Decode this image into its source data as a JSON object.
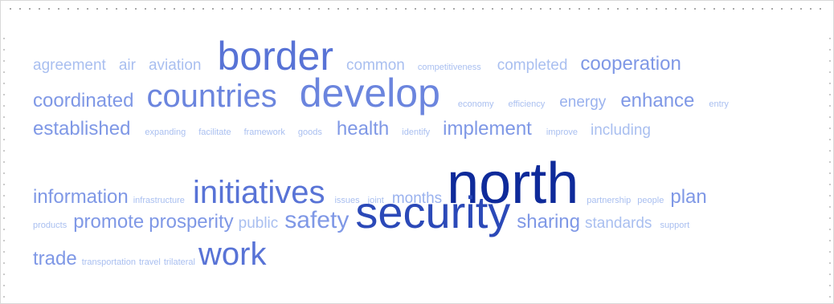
{
  "cloud": {
    "rows": [
      [
        {
          "text": "agreement",
          "size": 2,
          "color": "#a9bff0"
        },
        {
          "text": "air",
          "size": 2,
          "color": "#a9bff0"
        },
        {
          "text": "aviation",
          "size": 2,
          "color": "#a9bff0"
        },
        {
          "text": "border",
          "size": 6,
          "color": "#5873d6"
        },
        {
          "text": "common",
          "size": 2,
          "color": "#a9bff0"
        },
        {
          "text": "competitiveness",
          "size": 1,
          "color": "#a9bff0"
        },
        {
          "text": "completed",
          "size": 2,
          "color": "#a9bff0"
        },
        {
          "text": "cooperation",
          "size": 3,
          "color": "#7f98e6"
        }
      ],
      [
        {
          "text": "coordinated",
          "size": 3,
          "color": "#7f98e6"
        },
        {
          "text": "countries",
          "size": 5,
          "color": "#6b85de"
        },
        {
          "text": "develop",
          "size": 6,
          "color": "#6b85de"
        },
        {
          "text": "economy",
          "size": 1,
          "color": "#a9bff0"
        },
        {
          "text": "efficiency",
          "size": 1,
          "color": "#a9bff0"
        },
        {
          "text": "energy",
          "size": 2,
          "color": "#9ab2ee"
        },
        {
          "text": "enhance",
          "size": 3,
          "color": "#7f98e6"
        },
        {
          "text": "entry",
          "size": 1,
          "color": "#a9bff0"
        }
      ],
      [
        {
          "text": "established",
          "size": 3,
          "color": "#7f98e6"
        },
        {
          "text": "expanding",
          "size": 1,
          "color": "#a9bff0"
        },
        {
          "text": "facilitate",
          "size": 1,
          "color": "#a9bff0"
        },
        {
          "text": "framework",
          "size": 1,
          "color": "#a9bff0"
        },
        {
          "text": "goods",
          "size": 1,
          "color": "#a9bff0"
        },
        {
          "text": "health",
          "size": 3,
          "color": "#7f98e6"
        },
        {
          "text": "identify",
          "size": 1,
          "color": "#a9bff0"
        },
        {
          "text": "implement",
          "size": 3,
          "color": "#7f98e6"
        },
        {
          "text": "improve",
          "size": 1,
          "color": "#a9bff0"
        },
        {
          "text": "including",
          "size": 2,
          "color": "#a9bff0"
        }
      ],
      [
        {
          "text": "information",
          "size": 3,
          "color": "#7f98e6"
        },
        {
          "text": "infrastructure",
          "size": 1,
          "color": "#a9bff0"
        },
        {
          "text": "initiatives",
          "size": 5,
          "color": "#5873d6"
        },
        {
          "text": "issues",
          "size": 1,
          "color": "#a9bff0"
        },
        {
          "text": "joint",
          "size": 1,
          "color": "#a9bff0"
        },
        {
          "text": "months",
          "size": 2,
          "color": "#9ab2ee"
        },
        {
          "text": "north",
          "size": 8,
          "color": "#0e2a9a"
        },
        {
          "text": "partnership",
          "size": 1,
          "color": "#a9bff0"
        },
        {
          "text": "people",
          "size": 1,
          "color": "#a9bff0"
        },
        {
          "text": "plan",
          "size": 3,
          "color": "#7f98e6"
        }
      ],
      [
        {
          "text": "products",
          "size": 1,
          "color": "#a9bff0"
        },
        {
          "text": "promote",
          "size": 3,
          "color": "#7f98e6"
        },
        {
          "text": "prosperity",
          "size": 3,
          "color": "#7f98e6"
        },
        {
          "text": "public",
          "size": 2,
          "color": "#a9bff0"
        },
        {
          "text": "safety",
          "size": 4,
          "color": "#7f98e6"
        },
        {
          "text": "security",
          "size": 7,
          "color": "#2b49b8"
        },
        {
          "text": "sharing",
          "size": 3,
          "color": "#7f98e6"
        },
        {
          "text": "standards",
          "size": 2,
          "color": "#a9bff0"
        },
        {
          "text": "support",
          "size": 1,
          "color": "#a9bff0"
        }
      ],
      [
        {
          "text": "trade",
          "size": 3,
          "color": "#7f98e6"
        },
        {
          "text": "transportation",
          "size": 1,
          "color": "#a9bff0"
        },
        {
          "text": "travel",
          "size": 1,
          "color": "#a9bff0"
        },
        {
          "text": "trilateral",
          "size": 1,
          "color": "#a9bff0"
        },
        {
          "text": "work",
          "size": 5,
          "color": "#5873d6"
        }
      ]
    ]
  }
}
